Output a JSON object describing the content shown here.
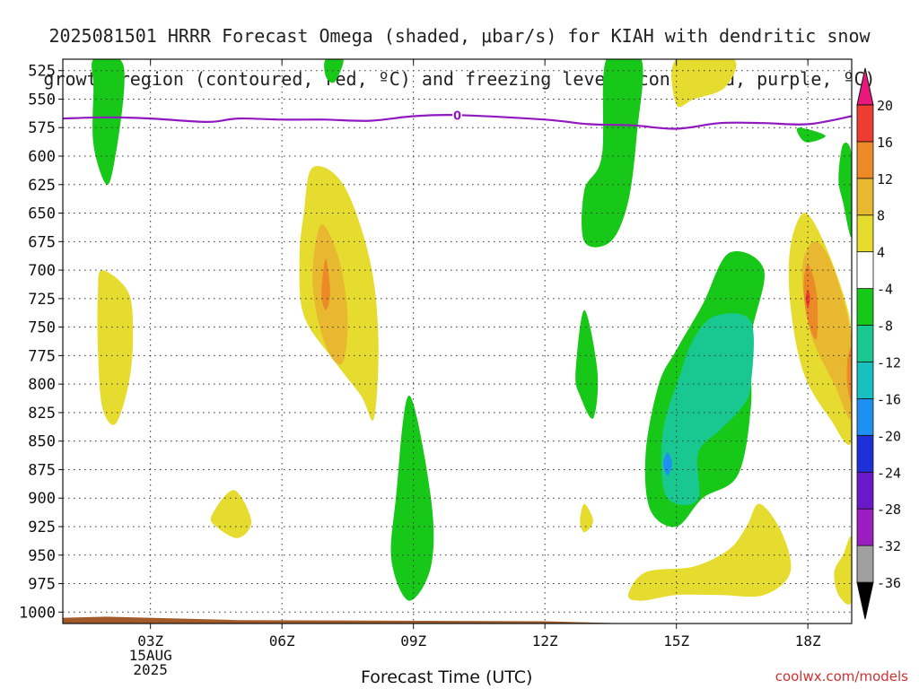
{
  "title_line1": "2025081501 HRRR Forecast Omega (shaded, μbar/s) for KIAH with dendritic snow",
  "title_line2": "growth region (contoured, red, ºC) and freezing level (contoured, purple, ºC)",
  "credit": "coolwx.com/models",
  "chart_data": {
    "type": "time-height contour",
    "title": "2025081501 HRRR Forecast Omega (shaded, μbar/s) for KIAH with dendritic snow growth region (contoured, red, ºC) and freezing level (contoured, purple, ºC)",
    "xlabel": "Forecast Time (UTC)",
    "ylabel": "",
    "x_ticks": [
      "03Z",
      "06Z",
      "09Z",
      "12Z",
      "15Z",
      "18Z"
    ],
    "x_tick_hours": [
      3,
      6,
      9,
      12,
      15,
      18
    ],
    "x_date_labels": [
      "15AUG",
      "2025"
    ],
    "xlim_hours": [
      1,
      19
    ],
    "y_ticks": [
      525,
      550,
      575,
      600,
      625,
      650,
      675,
      700,
      725,
      750,
      775,
      800,
      825,
      850,
      875,
      900,
      925,
      950,
      975,
      1000
    ],
    "ylim_hPa": [
      515,
      1010
    ],
    "grid": true,
    "colorbar": {
      "levels": [
        -36,
        -32,
        -28,
        -24,
        -20,
        -16,
        -12,
        -8,
        -4,
        4,
        8,
        12,
        16,
        20
      ],
      "label_values": [
        "20",
        "16",
        "12",
        "8",
        "4",
        "-4",
        "-8",
        "-12",
        "-16",
        "-20",
        "-24",
        "-28",
        "-32",
        "-36"
      ],
      "colors": [
        "#000000",
        "#a0a0a0",
        "#9a1dbf",
        "#6a18c8",
        "#2030d8",
        "#1e90f0",
        "#18c0c0",
        "#18c890",
        "#18c818",
        "#ffffff",
        "#e6dc30",
        "#e8b830",
        "#ec8a28",
        "#ee3c30",
        "#e8187c"
      ]
    },
    "freezing_level": {
      "label": "0",
      "color": "#9018c0",
      "points": [
        [
          1.0,
          567
        ],
        [
          2.0,
          566
        ],
        [
          3.0,
          567
        ],
        [
          4.3,
          570
        ],
        [
          5.0,
          567
        ],
        [
          6.0,
          568
        ],
        [
          7.0,
          568
        ],
        [
          8.0,
          569
        ],
        [
          9.0,
          565
        ],
        [
          10.0,
          564
        ],
        [
          12.0,
          568
        ],
        [
          13.0,
          572
        ],
        [
          14.0,
          573
        ],
        [
          15.0,
          576
        ],
        [
          16.0,
          571
        ],
        [
          17.0,
          571
        ],
        [
          18.0,
          572
        ],
        [
          19.0,
          565
        ]
      ]
    },
    "omega_regions": [
      {
        "band": "-8 to -4",
        "color": "#18c818",
        "points": [
          [
            1.7,
            515
          ],
          [
            2.3,
            515
          ],
          [
            2.4,
            540
          ],
          [
            2.2,
            600
          ],
          [
            2.0,
            625
          ],
          [
            1.7,
            590
          ],
          [
            1.7,
            540
          ]
        ]
      },
      {
        "band": "-8 to -4",
        "color": "#18c818",
        "points": [
          [
            7.0,
            515
          ],
          [
            7.4,
            515
          ],
          [
            7.2,
            535
          ],
          [
            7.0,
            530
          ]
        ]
      },
      {
        "band": "-8 to -4",
        "color": "#18c818",
        "points": [
          [
            13.4,
            515
          ],
          [
            14.2,
            515
          ],
          [
            14.1,
            580
          ],
          [
            13.9,
            640
          ],
          [
            13.5,
            675
          ],
          [
            12.9,
            675
          ],
          [
            12.9,
            630
          ],
          [
            13.3,
            600
          ]
        ]
      },
      {
        "band": "-8 to -4",
        "color": "#18c818",
        "points": [
          [
            18.8,
            590
          ],
          [
            19.0,
            600
          ],
          [
            19.0,
            670
          ],
          [
            18.8,
            640
          ],
          [
            18.7,
            620
          ]
        ]
      },
      {
        "band": "-8 to -4",
        "color": "#18c818",
        "points": [
          [
            17.8,
            575
          ],
          [
            18.4,
            582
          ],
          [
            18.0,
            588
          ],
          [
            17.8,
            582
          ]
        ]
      },
      {
        "band": "-8 to -4",
        "color": "#18c818",
        "points": [
          [
            12.9,
            735
          ],
          [
            13.2,
            790
          ],
          [
            13.1,
            830
          ],
          [
            12.8,
            810
          ],
          [
            12.7,
            790
          ]
        ]
      },
      {
        "band": "-8 to -4",
        "color": "#18c818",
        "points": [
          [
            8.9,
            810
          ],
          [
            9.4,
            900
          ],
          [
            9.4,
            960
          ],
          [
            8.9,
            990
          ],
          [
            8.5,
            955
          ],
          [
            8.6,
            900
          ]
        ]
      },
      {
        "band": "-8 to -4",
        "color": "#18c818",
        "points": [
          [
            16.2,
            685
          ],
          [
            17.0,
            700
          ],
          [
            16.7,
            760
          ],
          [
            16.7,
            820
          ],
          [
            16.4,
            880
          ],
          [
            15.6,
            900
          ],
          [
            15.0,
            925
          ],
          [
            14.4,
            910
          ],
          [
            14.3,
            860
          ],
          [
            14.6,
            800
          ],
          [
            15.0,
            770
          ],
          [
            15.6,
            730
          ]
        ]
      },
      {
        "band": "-12 to -8",
        "color": "#18c890",
        "points": [
          [
            15.9,
            740
          ],
          [
            16.7,
            745
          ],
          [
            16.7,
            800
          ],
          [
            16.5,
            820
          ],
          [
            16.0,
            840
          ],
          [
            15.5,
            860
          ],
          [
            15.5,
            900
          ],
          [
            15.0,
            905
          ],
          [
            14.7,
            890
          ],
          [
            14.7,
            840
          ],
          [
            15.1,
            790
          ],
          [
            15.4,
            760
          ]
        ]
      },
      {
        "band": "-16 to -12",
        "color": "#1e90f0",
        "points": [
          [
            14.8,
            860
          ],
          [
            14.9,
            870
          ],
          [
            14.8,
            880
          ],
          [
            14.7,
            870
          ]
        ]
      }
    ],
    "positive_regions": [
      {
        "band": "4 to 8",
        "color": "#e6dc30",
        "points": [
          [
            6.7,
            610
          ],
          [
            7.4,
            625
          ],
          [
            8.0,
            690
          ],
          [
            8.2,
            760
          ],
          [
            8.1,
            830
          ],
          [
            7.8,
            810
          ],
          [
            7.2,
            780
          ],
          [
            6.5,
            740
          ],
          [
            6.4,
            690
          ],
          [
            6.5,
            650
          ]
        ]
      },
      {
        "band": "4 to 8",
        "color": "#e6dc30",
        "points": [
          [
            1.9,
            700
          ],
          [
            2.5,
            720
          ],
          [
            2.6,
            760
          ],
          [
            2.5,
            800
          ],
          [
            2.2,
            835
          ],
          [
            1.9,
            820
          ],
          [
            1.8,
            770
          ],
          [
            1.8,
            720
          ]
        ]
      },
      {
        "band": "4 to 8",
        "color": "#e6dc30",
        "points": [
          [
            4.9,
            893
          ],
          [
            5.3,
            920
          ],
          [
            5.0,
            935
          ],
          [
            4.5,
            925
          ],
          [
            4.4,
            915
          ]
        ]
      },
      {
        "band": "4 to 8",
        "color": "#e6dc30",
        "points": [
          [
            15.0,
            515
          ],
          [
            16.3,
            515
          ],
          [
            16.1,
            540
          ],
          [
            15.4,
            550
          ],
          [
            15.0,
            555
          ]
        ]
      },
      {
        "band": "4 to 8",
        "color": "#e6dc30",
        "points": [
          [
            17.9,
            650
          ],
          [
            18.3,
            670
          ],
          [
            18.8,
            720
          ],
          [
            19.0,
            760
          ],
          [
            19.0,
            850
          ],
          [
            18.5,
            830
          ],
          [
            17.9,
            790
          ],
          [
            17.6,
            730
          ],
          [
            17.6,
            680
          ]
        ]
      },
      {
        "band": "4 to 8",
        "color": "#e6dc30",
        "points": [
          [
            12.9,
            905
          ],
          [
            13.1,
            920
          ],
          [
            12.9,
            930
          ],
          [
            12.8,
            920
          ]
        ]
      },
      {
        "band": "4 to 8",
        "color": "#e6dc30",
        "points": [
          [
            16.9,
            905
          ],
          [
            17.4,
            930
          ],
          [
            17.6,
            965
          ],
          [
            17.0,
            985
          ],
          [
            16.0,
            985
          ],
          [
            15.0,
            985
          ],
          [
            14.2,
            990
          ],
          [
            13.9,
            985
          ],
          [
            14.3,
            965
          ],
          [
            15.4,
            960
          ],
          [
            16.2,
            945
          ],
          [
            16.6,
            925
          ]
        ]
      },
      {
        "band": "4 to 8",
        "color": "#e6dc30",
        "points": [
          [
            19.0,
            935
          ],
          [
            19.0,
            990
          ],
          [
            18.7,
            985
          ],
          [
            18.6,
            965
          ],
          [
            18.8,
            950
          ]
        ]
      },
      {
        "band": "8 to 12",
        "color": "#e8b830",
        "points": [
          [
            6.9,
            660
          ],
          [
            7.3,
            690
          ],
          [
            7.5,
            740
          ],
          [
            7.4,
            780
          ],
          [
            7.1,
            775
          ],
          [
            6.8,
            740
          ],
          [
            6.7,
            700
          ]
        ]
      },
      {
        "band": "8 to 12",
        "color": "#e8b830",
        "points": [
          [
            18.2,
            675
          ],
          [
            18.6,
            700
          ],
          [
            19.0,
            760
          ],
          [
            19.0,
            830
          ],
          [
            18.6,
            800
          ],
          [
            18.1,
            760
          ],
          [
            17.9,
            720
          ],
          [
            17.9,
            690
          ]
        ]
      },
      {
        "band": "12 to 16",
        "color": "#ec8a28",
        "points": [
          [
            7.0,
            690
          ],
          [
            7.1,
            720
          ],
          [
            7.0,
            735
          ],
          [
            6.9,
            720
          ]
        ]
      },
      {
        "band": "12 to 16",
        "color": "#ec8a28",
        "points": [
          [
            18.0,
            695
          ],
          [
            18.2,
            720
          ],
          [
            18.2,
            760
          ],
          [
            18.0,
            745
          ],
          [
            17.9,
            715
          ]
        ]
      },
      {
        "band": "12 to 16",
        "color": "#ec8a28",
        "points": [
          [
            18.9,
            780
          ],
          [
            19.0,
            770
          ],
          [
            19.0,
            815
          ],
          [
            18.9,
            800
          ]
        ]
      },
      {
        "band": "16 to 20",
        "color": "#ee3c30",
        "points": [
          [
            18.0,
            717
          ],
          [
            18.05,
            725
          ],
          [
            18.0,
            733
          ],
          [
            17.95,
            725
          ]
        ]
      }
    ],
    "terrain": {
      "color": "#a35a2a",
      "points": [
        [
          1.0,
          1005
        ],
        [
          2.0,
          1004
        ],
        [
          5.0,
          1007
        ],
        [
          12.0,
          1008
        ],
        [
          15.0,
          1011
        ],
        [
          19.0,
          1011
        ]
      ]
    }
  }
}
